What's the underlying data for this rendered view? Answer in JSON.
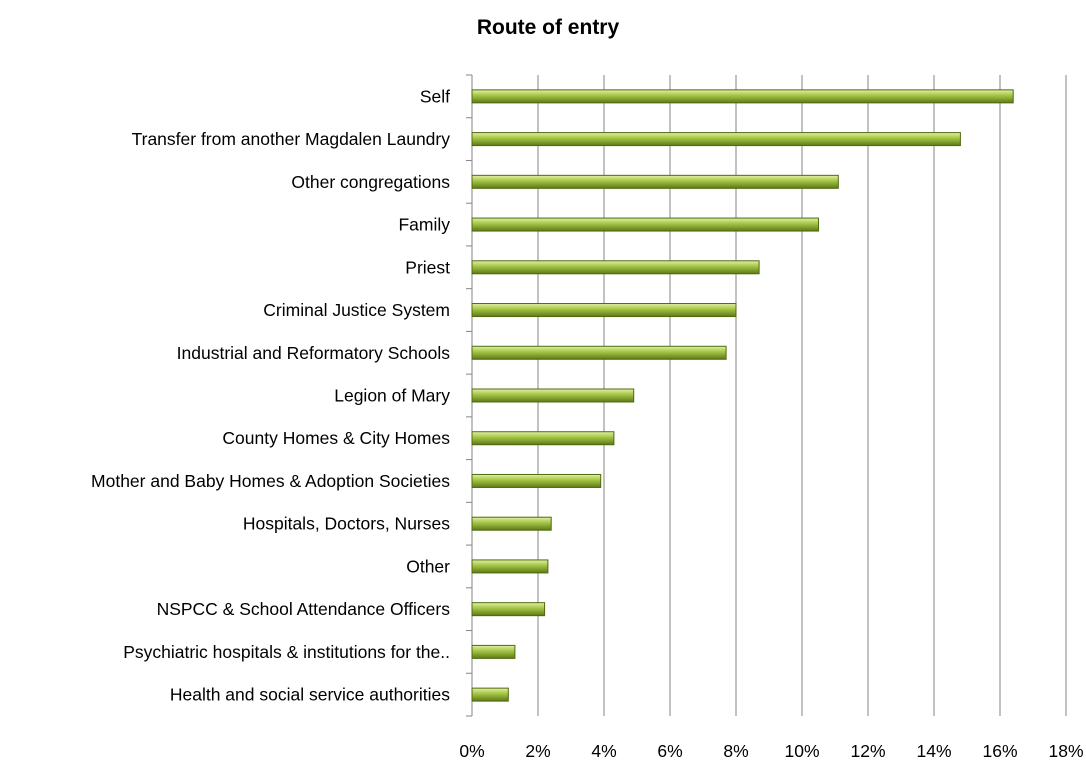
{
  "chart_data": {
    "type": "bar",
    "orientation": "horizontal",
    "title": "Route of entry",
    "xlabel": "",
    "ylabel": "",
    "xlim": [
      0,
      18
    ],
    "x_ticks": [
      "0%",
      "2%",
      "4%",
      "6%",
      "8%",
      "10%",
      "12%",
      "14%",
      "16%",
      "18%"
    ],
    "grid": "vertical",
    "bar_color": "#9bbb3c",
    "categories": [
      "Self",
      "Transfer from another Magdalen Laundry",
      "Other congregations",
      "Family",
      "Priest",
      "Criminal Justice System",
      "Industrial and Reformatory Schools",
      "Legion of Mary",
      "County Homes & City Homes",
      "Mother and Baby Homes & Adoption Societies",
      "Hospitals, Doctors, Nurses",
      "Other",
      "NSPCC & School Attendance Officers",
      "Psychiatric hospitals & institutions for the..",
      "Health and social service authorities"
    ],
    "values": [
      16.4,
      14.8,
      11.1,
      10.5,
      8.7,
      8.0,
      7.7,
      4.9,
      4.3,
      3.9,
      2.4,
      2.3,
      2.2,
      1.3,
      1.1
    ]
  }
}
